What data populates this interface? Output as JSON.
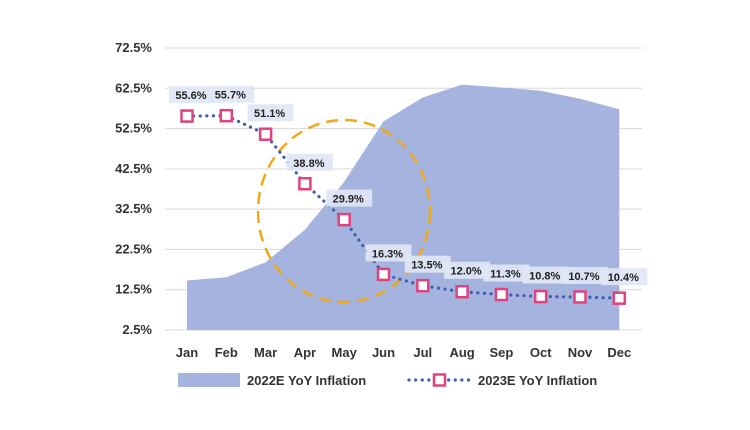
{
  "chart_data": {
    "type": "area+line",
    "categories": [
      "Jan",
      "Feb",
      "Mar",
      "Apr",
      "May",
      "Jun",
      "Jul",
      "Aug",
      "Sep",
      "Oct",
      "Nov",
      "Dec"
    ],
    "series": [
      {
        "name": "2022E YoY Inflation",
        "type": "area",
        "color": "#a4b4df",
        "values": [
          14.8,
          15.6,
          19.3,
          27.4,
          39.3,
          54.3,
          60.2,
          63.4,
          62.7,
          61.9,
          59.9,
          57.3
        ]
      },
      {
        "name": "2023E  YoY Inflation",
        "type": "line",
        "line_style": "dotted",
        "line_color": "#3f5fb5",
        "marker": "square",
        "marker_color": "#e0427f",
        "values": [
          55.6,
          55.7,
          51.1,
          38.8,
          29.9,
          16.3,
          13.5,
          12.0,
          11.3,
          10.8,
          10.7,
          10.4
        ],
        "labels": [
          "55.6%",
          "55.7%",
          "51.1%",
          "38.8%",
          "29.9%",
          "16.3%",
          "13.5%",
          "12.0%",
          "11.3%",
          "10.8%",
          "10.7%",
          "10.4%"
        ]
      }
    ],
    "y_ticks": [
      "72.5%",
      "62.5%",
      "52.5%",
      "42.5%",
      "32.5%",
      "22.5%",
      "12.5%",
      "2.5%"
    ],
    "ylim": [
      2.5,
      72.5
    ],
    "grid": true,
    "legend_position": "bottom",
    "annotation": {
      "shape": "dashed circle",
      "color": "#f0a818",
      "around": [
        "Apr",
        "May",
        "Jun"
      ]
    },
    "colors": {
      "label_box": "#dfe6f4",
      "grid": "#d9d9d9"
    }
  }
}
